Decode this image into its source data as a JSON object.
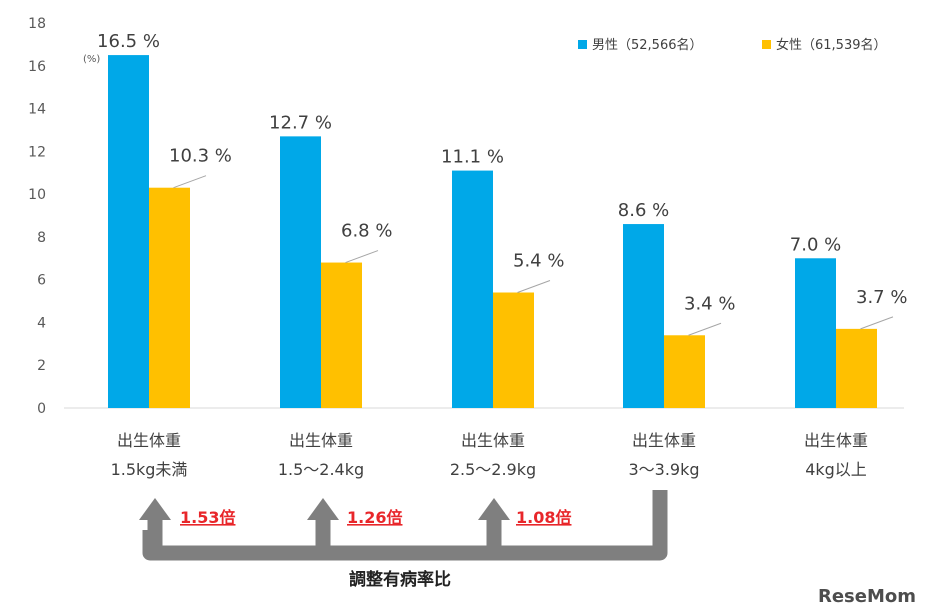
{
  "chart_data": {
    "type": "bar",
    "unit_label": "(%)",
    "ylim": [
      0,
      18
    ],
    "yticks": [
      0,
      2,
      4,
      6,
      8,
      10,
      12,
      14,
      16,
      18
    ],
    "grid": false,
    "legend_position": "top-right",
    "categories": [
      [
        "出生体重",
        "1.5kg未満"
      ],
      [
        "出生体重",
        "1.5～2.4kg"
      ],
      [
        "出生体重",
        "2.5～2.9kg"
      ],
      [
        "出生体重",
        "3～3.9kg"
      ],
      [
        "出生体重",
        "4kg以上"
      ]
    ],
    "series": [
      {
        "name": "男性（52,566名）",
        "color": "#00a8e8",
        "values": [
          16.5,
          12.7,
          11.1,
          8.6,
          7.0
        ],
        "labels": [
          "16.5 %",
          "12.7 %",
          "11.1 %",
          "8.6 %",
          "7.0 %"
        ]
      },
      {
        "name": "女性（61,539名）",
        "color": "#ffc000",
        "values": [
          10.3,
          6.8,
          5.4,
          3.4,
          3.7
        ],
        "labels": [
          "10.3 %",
          "6.8 %",
          "5.4 %",
          "3.4 %",
          "3.7 %"
        ]
      }
    ],
    "ratios": [
      "1.53倍",
      "1.26倍",
      "1.08倍"
    ],
    "ratio_caption": "調整有病率比",
    "ratio_color": "#e8262a",
    "bracket_color": "#7f7f7f"
  },
  "watermark": "ReseMom"
}
